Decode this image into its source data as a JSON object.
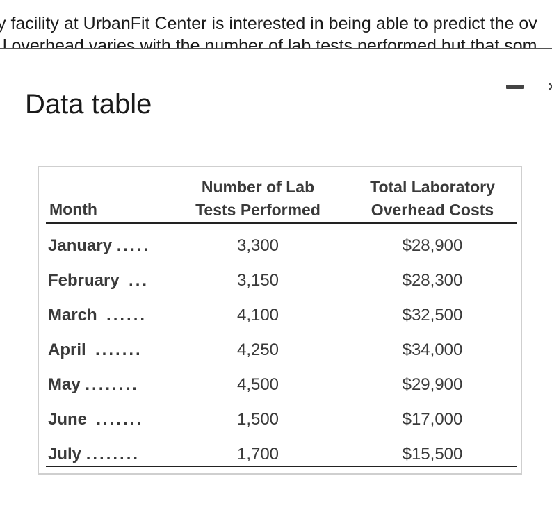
{
  "problem": {
    "line1": "y facility at UrbanFit Center is interested in being able to predict the ov",
    "line2": "l overhead varies with the number of lab tests performed but that som"
  },
  "dialog": {
    "title": "Data table",
    "minimize_icon": "minimize-icon",
    "close_icon": "close-icon"
  },
  "table": {
    "headers": {
      "month": "Month",
      "tests_line1": "Number of Lab",
      "tests_line2": "Tests Performed",
      "costs_line1": "Total Laboratory",
      "costs_line2": "Overhead Costs"
    },
    "rows": [
      {
        "month": "January",
        "dots": ".....",
        "tests": "3,300",
        "cost": "$28,900"
      },
      {
        "month": "February",
        "dots": "...",
        "tests": "3,150",
        "cost": "$28,300"
      },
      {
        "month": "March",
        "dots": "......",
        "tests": "4,100",
        "cost": "$32,500"
      },
      {
        "month": "April",
        "dots": ".......",
        "tests": "4,250",
        "cost": "$34,000"
      },
      {
        "month": "May",
        "dots": "........",
        "tests": "4,500",
        "cost": "$29,900"
      },
      {
        "month": "June",
        "dots": ".......",
        "tests": "1,500",
        "cost": "$17,000"
      },
      {
        "month": "July",
        "dots": "........",
        "tests": "1,700",
        "cost": "$15,500"
      }
    ]
  }
}
